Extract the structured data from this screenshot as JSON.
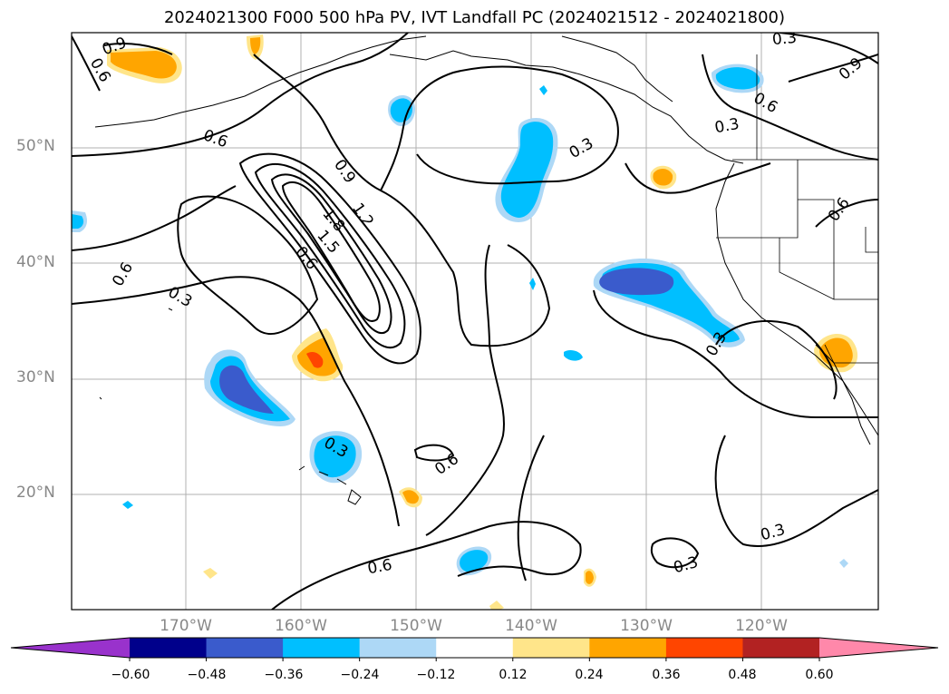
{
  "title": "2024021300 F000 500 hPa PV, IVT Landfall PC (2024021512 - 2024021800)",
  "lat_labels": [
    "50°N",
    "40°N",
    "30°N",
    "20°N"
  ],
  "lon_labels": [
    "170°W",
    "160°W",
    "150°W",
    "140°W",
    "130°W",
    "120°W"
  ],
  "contour_labels": [
    "0.9",
    "0.6",
    "0.6",
    "0.6",
    "0.3",
    "0.9",
    "1.2",
    "1.8",
    "1.5",
    "0.6",
    "0.3",
    "0.6",
    "0.3",
    "0.3",
    "0.6",
    "0.9",
    "0.6",
    "0.3",
    "0.6",
    "0.3",
    "0.3",
    "0.3"
  ],
  "colorbar": {
    "ticks": [
      "−0.60",
      "−0.48",
      "−0.36",
      "−0.24",
      "−0.12",
      "0.12",
      "0.24",
      "0.36",
      "0.48",
      "0.60"
    ],
    "colors": [
      "#9932cc",
      "#00008b",
      "#3a5bcc",
      "#00bfff",
      "#add8f6",
      "#ffffff",
      "#ffe58a",
      "#ffa500",
      "#ff4500",
      "#b22222",
      "#ff88aa"
    ]
  }
}
